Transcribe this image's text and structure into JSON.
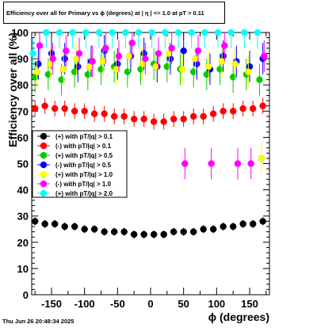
{
  "title": "Efficiency over all for Primary vs ϕ (degrees) at |  η  | <= 1.0 at pT > 0.11",
  "footer": "Thu Jun 26 20:48:34 2025",
  "chart_data": {
    "type": "scatter",
    "xlabel": "ϕ (degrees)",
    "ylabel": "Efficiency over all (%)",
    "xlim": [
      -180,
      180
    ],
    "ylim": [
      0,
      100
    ],
    "xticks": [
      -150,
      -100,
      -50,
      0,
      50,
      100,
      150
    ],
    "yticks": [
      0,
      10,
      20,
      30,
      40,
      50,
      60,
      70,
      80,
      90,
      100
    ],
    "legend_position": "center-left",
    "series": [
      {
        "name": "(+) with pT/|q| > 0.1",
        "color": "#000000",
        "x": [
          -175,
          -160,
          -145,
          -130,
          -115,
          -100,
          -85,
          -70,
          -55,
          -40,
          -25,
          -10,
          5,
          20,
          35,
          50,
          65,
          80,
          95,
          110,
          125,
          140,
          155,
          170
        ],
        "y": [
          28,
          27,
          27,
          26,
          26,
          25,
          25,
          24,
          24,
          24,
          23,
          23,
          23,
          23,
          24,
          24,
          24,
          25,
          25,
          26,
          26,
          27,
          27,
          28
        ]
      },
      {
        "name": "(-) with pT/|q| > 0.1",
        "color": "#ff0000",
        "x": [
          -175,
          -160,
          -145,
          -130,
          -115,
          -100,
          -85,
          -70,
          -55,
          -40,
          -25,
          -10,
          5,
          20,
          35,
          50,
          65,
          80,
          95,
          110,
          125,
          140,
          155,
          170
        ],
        "y": [
          71,
          72,
          71,
          71,
          70,
          70,
          69,
          69,
          68,
          68,
          67,
          67,
          66,
          66,
          67,
          67,
          68,
          68,
          69,
          70,
          70,
          71,
          71,
          72
        ]
      },
      {
        "name": "(+) with pT/|q| > 0.5",
        "color": "#00cc00",
        "x": [
          -175,
          -155,
          -135,
          -115,
          -95,
          -75,
          -55,
          -35,
          -15,
          5,
          25,
          45,
          65,
          85,
          105,
          125,
          145,
          165
        ],
        "y": [
          83,
          84,
          82,
          85,
          84,
          86,
          87,
          85,
          86,
          88,
          87,
          86,
          85,
          84,
          86,
          83,
          84,
          82
        ]
      },
      {
        "name": "(-) with pT/|q| > 0.5",
        "color": "#0000ff",
        "x": [
          -170,
          -150,
          -130,
          -110,
          -90,
          -70,
          -50,
          -30,
          -10,
          10,
          30,
          50,
          70,
          90,
          110,
          130,
          150,
          170
        ],
        "y": [
          88,
          92,
          90,
          87,
          89,
          93,
          88,
          91,
          92,
          87,
          90,
          93,
          88,
          86,
          91,
          89,
          87,
          90
        ]
      },
      {
        "name": "(+) with pT/|q| > 1.0",
        "color": "#ffff00",
        "x": [
          -172,
          -152,
          -132,
          -112,
          -92,
          -72,
          -52,
          -32,
          -12,
          8,
          28,
          48,
          68,
          88,
          108,
          128,
          148,
          168
        ],
        "y": [
          85,
          88,
          86,
          90,
          87,
          89,
          86,
          91,
          88,
          87,
          92,
          86,
          90,
          87,
          89,
          88,
          85,
          52
        ]
      },
      {
        "name": "(-) with pT/|q| > 1.0",
        "color": "#ff00ff",
        "x": [
          -168,
          -148,
          -128,
          -108,
          -88,
          -68,
          -48,
          -28,
          -8,
          12,
          32,
          52,
          72,
          92,
          112,
          132,
          152,
          172
        ],
        "y": [
          95,
          90,
          93,
          92,
          89,
          94,
          91,
          96,
          90,
          92,
          94,
          50,
          93,
          50,
          95,
          50,
          50,
          91
        ]
      },
      {
        "name": "(+) with pT/|q| > 2.0",
        "color": "#00ffff",
        "x": [
          -178,
          -158,
          -138,
          -118,
          -98,
          -78,
          -58,
          -38,
          -18,
          2,
          22,
          42,
          62,
          82,
          102,
          122,
          142,
          162
        ],
        "y": [
          92,
          100,
          100,
          100,
          100,
          100,
          100,
          100,
          100,
          100,
          100,
          100,
          100,
          100,
          100,
          100,
          100,
          100
        ]
      }
    ]
  }
}
